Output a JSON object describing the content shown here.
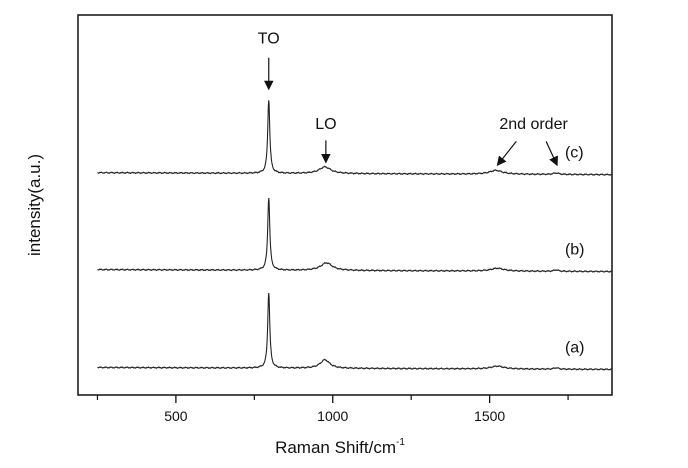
{
  "chart_data": {
    "type": "line",
    "title": "",
    "xlabel": "Raman Shift/cm",
    "xlabel_sup": "-1",
    "ylabel": "intensity(a.u.)",
    "xlim": [
      188,
      1890
    ],
    "ylim": [
      0,
      4
    ],
    "xticks": [
      500,
      1000,
      1500
    ],
    "xtick_labels": [
      "500",
      "1000",
      "1500"
    ],
    "minor_xticks": [
      250,
      750,
      1250,
      1750
    ],
    "grid": false,
    "series": [
      {
        "name": "(a)",
        "baseline": 0.29,
        "peaks": [
          {
            "center": 796,
            "height": 0.79,
            "width": 4
          },
          {
            "center": 975,
            "height": 0.09,
            "width": 18
          },
          {
            "center": 1525,
            "height": 0.03,
            "width": 25
          },
          {
            "center": 1712,
            "height": 0.015,
            "width": 8
          }
        ]
      },
      {
        "name": "(b)",
        "baseline": 1.32,
        "peaks": [
          {
            "center": 796,
            "height": 0.76,
            "width": 4
          },
          {
            "center": 980,
            "height": 0.08,
            "width": 22
          },
          {
            "center": 1525,
            "height": 0.03,
            "width": 25
          },
          {
            "center": 1712,
            "height": 0.015,
            "width": 8
          }
        ]
      },
      {
        "name": "(c)",
        "baseline": 2.34,
        "peaks": [
          {
            "center": 796,
            "height": 0.77,
            "width": 4
          },
          {
            "center": 975,
            "height": 0.07,
            "width": 22
          },
          {
            "center": 1520,
            "height": 0.04,
            "width": 25
          },
          {
            "center": 1712,
            "height": 0.015,
            "width": 10
          }
        ]
      }
    ],
    "series_labels": [
      {
        "text": "(a)",
        "x": 1740,
        "y": 0.45
      },
      {
        "text": "(b)",
        "x": 1740,
        "y": 1.48
      },
      {
        "text": "(c)",
        "x": 1740,
        "y": 2.5
      }
    ],
    "annotations": [
      {
        "text": "TO",
        "x": 796,
        "y": 3.7,
        "arrow": [
          [
            796,
            3.55
          ],
          [
            796,
            3.22
          ]
        ]
      },
      {
        "text": "LO",
        "x": 978,
        "y": 2.8,
        "arrow": [
          [
            978,
            2.68
          ],
          [
            978,
            2.45
          ]
        ]
      },
      {
        "text": "2nd order",
        "x": 1640,
        "y": 2.8,
        "arrows": [
          [
            [
              1585,
              2.67
            ],
            [
              1525,
              2.42
            ]
          ],
          [
            [
              1680,
              2.67
            ],
            [
              1715,
              2.42
            ]
          ]
        ]
      }
    ]
  }
}
